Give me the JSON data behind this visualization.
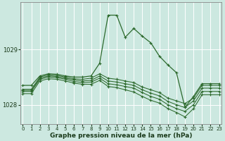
{
  "xlabel": "Graphe pression niveau de la mer (hPa)",
  "bg_color": "#cce8e0",
  "grid_color": "#ffffff",
  "line_color": "#2d6a2d",
  "axis_label_color": "#1a3a1a",
  "ylim": [
    1027.65,
    1029.85
  ],
  "yticks": [
    1028,
    1029
  ],
  "xlim": [
    -0.3,
    23.3
  ],
  "xticks": [
    0,
    1,
    2,
    3,
    4,
    5,
    6,
    7,
    8,
    9,
    10,
    11,
    12,
    13,
    14,
    15,
    16,
    17,
    18,
    19,
    20,
    21,
    22,
    23
  ],
  "series": [
    [
      1028.35,
      1028.35,
      1028.52,
      1028.56,
      1028.55,
      1028.52,
      1028.5,
      1028.5,
      1028.52,
      1028.75,
      1029.62,
      1029.62,
      1029.22,
      1029.38,
      1029.24,
      1029.12,
      1028.88,
      1028.72,
      1028.58,
      1027.95,
      1028.15,
      1028.38,
      1028.38,
      1028.38
    ],
    [
      1028.28,
      1028.28,
      1028.5,
      1028.54,
      1028.53,
      1028.5,
      1028.47,
      1028.46,
      1028.48,
      1028.56,
      1028.48,
      1028.46,
      1028.43,
      1028.4,
      1028.32,
      1028.27,
      1028.22,
      1028.12,
      1028.07,
      1028.02,
      1028.12,
      1028.35,
      1028.35,
      1028.35
    ],
    [
      1028.26,
      1028.26,
      1028.48,
      1028.52,
      1028.51,
      1028.48,
      1028.45,
      1028.43,
      1028.44,
      1028.52,
      1028.43,
      1028.41,
      1028.38,
      1028.35,
      1028.27,
      1028.21,
      1028.16,
      1028.06,
      1028.0,
      1027.95,
      1028.07,
      1028.3,
      1028.3,
      1028.3
    ],
    [
      1028.24,
      1028.24,
      1028.46,
      1028.5,
      1028.49,
      1028.46,
      1028.42,
      1028.4,
      1028.41,
      1028.48,
      1028.38,
      1028.36,
      1028.33,
      1028.3,
      1028.22,
      1028.15,
      1028.1,
      1028.0,
      1027.93,
      1027.88,
      1028.0,
      1028.24,
      1028.24,
      1028.24
    ],
    [
      1028.2,
      1028.2,
      1028.43,
      1028.47,
      1028.46,
      1028.43,
      1028.39,
      1028.37,
      1028.37,
      1028.44,
      1028.33,
      1028.31,
      1028.27,
      1028.23,
      1028.15,
      1028.08,
      1028.03,
      1027.93,
      1027.86,
      1027.78,
      1027.93,
      1028.18,
      1028.18,
      1028.18
    ]
  ]
}
